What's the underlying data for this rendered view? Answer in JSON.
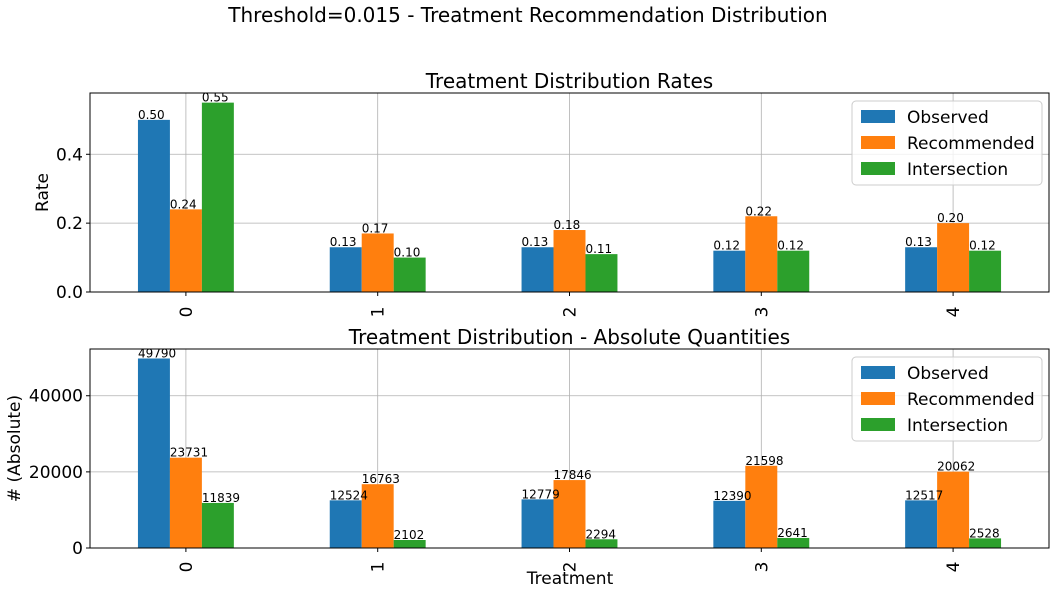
{
  "figure": {
    "suptitle": "Threshold=0.015 - Treatment Recommendation Distribution"
  },
  "colors": {
    "Observed": "#1f77b4",
    "Recommended": "#ff7f0e",
    "Intersection": "#2ca02c",
    "grid": "#b0b0b0"
  },
  "chart_data": [
    {
      "type": "bar",
      "title": "Treatment Distribution Rates",
      "xlabel": "",
      "ylabel": "Rate",
      "categories": [
        "0",
        "1",
        "2",
        "3",
        "4"
      ],
      "series": [
        {
          "name": "Observed",
          "values": [
            0.5,
            0.13,
            0.13,
            0.12,
            0.13
          ],
          "labels": [
            "0.50",
            "0.13",
            "0.13",
            "0.12",
            "0.13"
          ]
        },
        {
          "name": "Recommended",
          "values": [
            0.24,
            0.17,
            0.18,
            0.22,
            0.2
          ],
          "labels": [
            "0.24",
            "0.17",
            "0.18",
            "0.22",
            "0.20"
          ]
        },
        {
          "name": "Intersection",
          "values": [
            0.55,
            0.1,
            0.11,
            0.12,
            0.12
          ],
          "labels": [
            "0.55",
            "0.10",
            "0.11",
            "0.12",
            "0.12"
          ]
        }
      ],
      "ylim": [
        0,
        0.578
      ],
      "yticks": [
        0,
        0.2,
        0.4
      ],
      "ytick_labels": [
        "0.0",
        "0.2",
        "0.4"
      ],
      "grid": true,
      "legend": "top-right"
    },
    {
      "type": "bar",
      "title": "Treatment Distribution - Absolute Quantities",
      "xlabel": "Treatment",
      "ylabel": "# (Absolute)",
      "categories": [
        "0",
        "1",
        "2",
        "3",
        "4"
      ],
      "series": [
        {
          "name": "Observed",
          "values": [
            49790,
            12524,
            12779,
            12390,
            12517
          ],
          "labels": [
            "49790",
            "12524",
            "12779",
            "12390",
            "12517"
          ]
        },
        {
          "name": "Recommended",
          "values": [
            23731,
            16763,
            17846,
            21598,
            20062
          ],
          "labels": [
            "23731",
            "16763",
            "17846",
            "21598",
            "20062"
          ]
        },
        {
          "name": "Intersection",
          "values": [
            11839,
            2102,
            2294,
            2641,
            2528
          ],
          "labels": [
            "11839",
            "2102",
            "2294",
            "2641",
            "2528"
          ]
        }
      ],
      "ylim": [
        0,
        52280
      ],
      "yticks": [
        0,
        20000,
        40000
      ],
      "ytick_labels": [
        "0",
        "20000",
        "40000"
      ],
      "grid": true,
      "legend": "top-right"
    }
  ]
}
